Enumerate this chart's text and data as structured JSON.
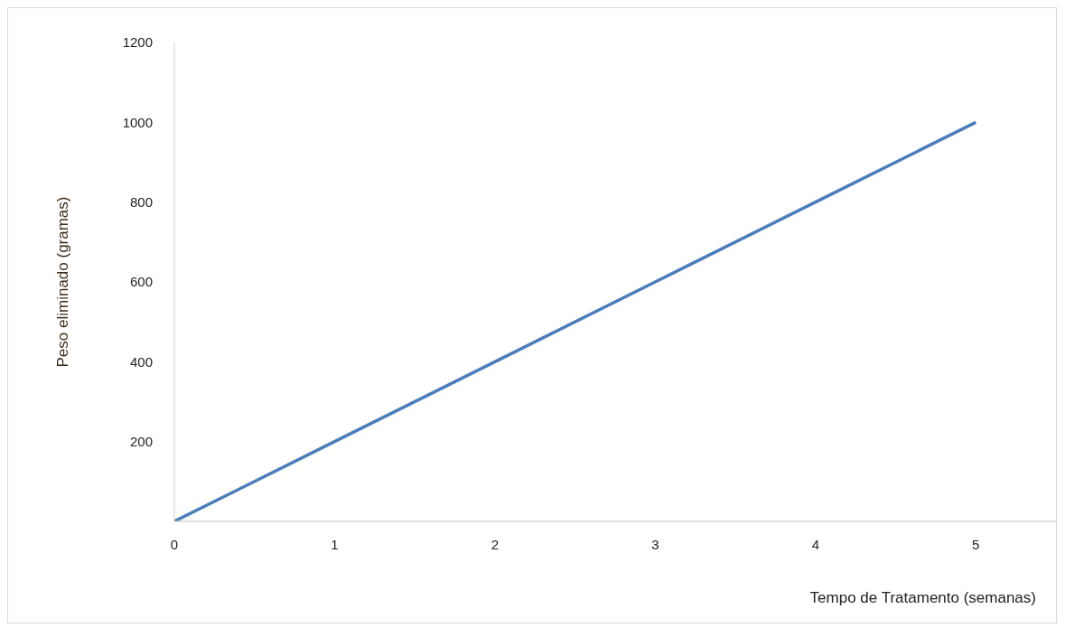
{
  "chart_data": {
    "type": "line",
    "xlabel": "Tempo de Tratamento (semanas)",
    "ylabel": "Peso eliminado (gramas)",
    "x": [
      0,
      1,
      2,
      3,
      4,
      5
    ],
    "series": [
      {
        "color": "#4a7ebb",
        "values": [
          0,
          200,
          400,
          600,
          800,
          1000
        ]
      }
    ],
    "xlim": [
      0,
      5.5
    ],
    "xticks": [
      0,
      1,
      2,
      3,
      4,
      5
    ],
    "ylim": [
      0,
      1200
    ],
    "yticks": [
      200,
      400,
      600,
      800,
      1000,
      1200
    ],
    "grid": false,
    "legend": false,
    "marker": "none",
    "line_style": "solid"
  }
}
